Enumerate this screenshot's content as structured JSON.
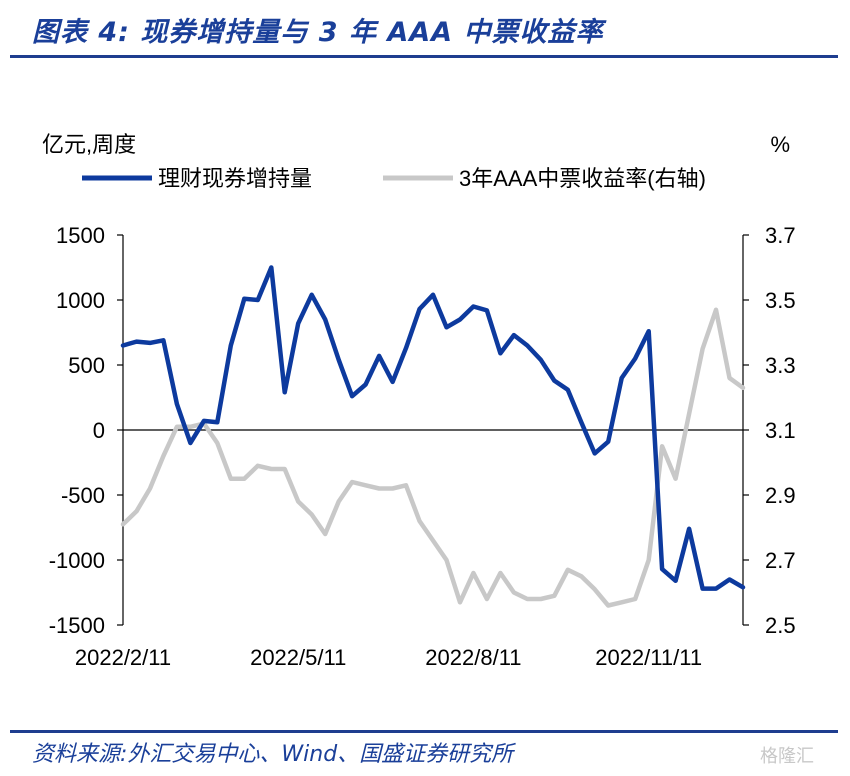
{
  "title": "图表 4: 现券增持量与 3 年 AAA 中票收益率",
  "source": "资料来源:外汇交易中心、Wind、国盛证券研究所",
  "watermark": "格隆汇",
  "chart_data": {
    "type": "line",
    "left_unit": "亿元,周度",
    "right_unit": "%",
    "left_axis": {
      "min": -1500,
      "max": 1500,
      "ticks": [
        1500,
        1000,
        500,
        0,
        -500,
        -1000,
        -1500
      ]
    },
    "right_axis": {
      "min": 2.5,
      "max": 3.7,
      "ticks": [
        3.7,
        3.5,
        3.3,
        3.1,
        2.9,
        2.7,
        2.5
      ]
    },
    "x_tick_labels": [
      {
        "label": "2022/2/11",
        "index": 0
      },
      {
        "label": "2022/5/11",
        "index": 13
      },
      {
        "label": "2022/8/11",
        "index": 26
      },
      {
        "label": "2022/11/11",
        "index": 39
      }
    ],
    "colors": {
      "left_series": "#0d3a9e",
      "right_series": "#c8c8c8"
    },
    "series": [
      {
        "name": "理财现券增持量",
        "axis": "left",
        "values": [
          650,
          680,
          670,
          690,
          200,
          -100,
          70,
          60,
          650,
          1010,
          1000,
          1250,
          290,
          820,
          1040,
          850,
          540,
          260,
          350,
          570,
          370,
          630,
          930,
          1040,
          790,
          850,
          950,
          920,
          590,
          730,
          650,
          540,
          380,
          310,
          60,
          -180,
          -90,
          400,
          550,
          760,
          -1070,
          -1160,
          -760,
          -1220,
          -1220,
          -1150,
          -1210
        ]
      },
      {
        "name": "3年AAA中票收益率(右轴)",
        "axis": "right",
        "values": [
          2.81,
          2.85,
          2.92,
          3.02,
          3.11,
          3.11,
          3.12,
          3.06,
          2.95,
          2.95,
          2.99,
          2.98,
          2.98,
          2.88,
          2.84,
          2.78,
          2.88,
          2.94,
          2.93,
          2.92,
          2.92,
          2.93,
          2.82,
          2.76,
          2.7,
          2.57,
          2.66,
          2.58,
          2.66,
          2.6,
          2.58,
          2.58,
          2.59,
          2.67,
          2.65,
          2.61,
          2.56,
          2.57,
          2.58,
          2.7,
          3.05,
          2.95,
          3.15,
          3.35,
          3.47,
          3.26,
          3.23
        ]
      }
    ]
  }
}
